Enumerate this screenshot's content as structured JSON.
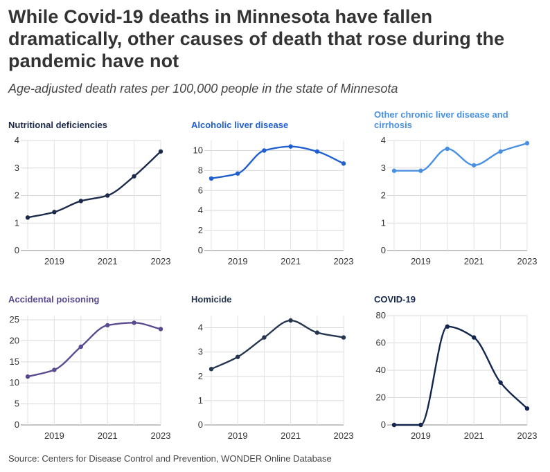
{
  "title": "While Covid-19 deaths in Minnesota have fallen dramatically, other causes of death that rose during the pandemic have not",
  "subtitle": "Age-adjusted death rates per 100,000 people in the state of Minnesota",
  "source": "Source: Centers for Disease Control and Prevention, WONDER Online Database",
  "chart_data": [
    {
      "type": "line",
      "title": "Nutritional deficiencies",
      "color": "#1b2a4a",
      "x": [
        2018,
        2019,
        2020,
        2021,
        2022,
        2023
      ],
      "values": [
        1.2,
        1.4,
        1.8,
        2.0,
        2.7,
        3.6
      ],
      "ylim": [
        0,
        4
      ],
      "yticks": [
        0,
        1,
        2,
        3,
        4
      ],
      "xticks": [
        2019,
        2021,
        2023
      ],
      "grid": true
    },
    {
      "type": "line",
      "title": "Alcoholic liver disease",
      "color": "#1f5fcf",
      "x": [
        2018,
        2019,
        2020,
        2021,
        2022,
        2023
      ],
      "values": [
        7.2,
        7.7,
        10.0,
        10.4,
        9.9,
        8.7
      ],
      "ylim": [
        0,
        11
      ],
      "yticks": [
        0,
        2,
        4,
        6,
        8,
        10
      ],
      "xticks": [
        2019,
        2021,
        2023
      ],
      "grid": true
    },
    {
      "type": "line",
      "title": "Other chronic liver disease and cirrhosis",
      "color": "#4a90e2",
      "x": [
        2018,
        2019,
        2020,
        2021,
        2022,
        2023
      ],
      "values": [
        2.9,
        2.9,
        3.7,
        3.1,
        3.6,
        3.9
      ],
      "ylim": [
        0,
        4
      ],
      "yticks": [
        0,
        1,
        2,
        3,
        4
      ],
      "xticks": [
        2019,
        2021,
        2023
      ],
      "grid": true
    },
    {
      "type": "line",
      "title": "Accidental poisoning",
      "color": "#5b4a8f",
      "x": [
        2018,
        2019,
        2020,
        2021,
        2022,
        2023
      ],
      "values": [
        11.5,
        13.1,
        18.6,
        23.7,
        24.3,
        22.8
      ],
      "ylim": [
        0,
        26
      ],
      "yticks": [
        0,
        5,
        10,
        15,
        20,
        25
      ],
      "xticks": [
        2019,
        2021,
        2023
      ],
      "grid": true
    },
    {
      "type": "line",
      "title": "Homicide",
      "color": "#26364f",
      "x": [
        2018,
        2019,
        2020,
        2021,
        2022,
        2023
      ],
      "values": [
        2.3,
        2.8,
        3.6,
        4.3,
        3.8,
        3.6
      ],
      "ylim": [
        0,
        4.5
      ],
      "yticks": [
        0,
        1,
        2,
        3,
        4
      ],
      "xticks": [
        2019,
        2021,
        2023
      ],
      "grid": true
    },
    {
      "type": "line",
      "title": "COVID-19",
      "color": "#14264d",
      "x": [
        2018,
        2019,
        2020,
        2021,
        2022,
        2023
      ],
      "values": [
        0,
        0,
        72,
        64,
        31,
        12
      ],
      "ylim": [
        0,
        80
      ],
      "yticks": [
        0,
        20,
        40,
        60,
        80
      ],
      "xticks": [
        2019,
        2021,
        2023
      ],
      "grid": true
    }
  ]
}
